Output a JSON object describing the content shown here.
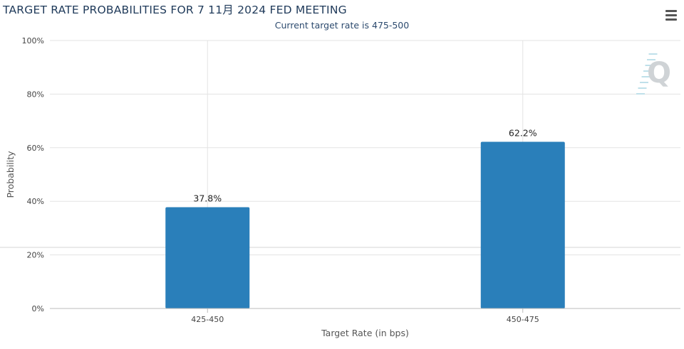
{
  "header": {
    "title": "TARGET RATE PROBABILITIES FOR 7 11月 2024 FED MEETING",
    "subtitle": "Current target rate is 475-500"
  },
  "menu": {
    "icon": "hamburger-menu-icon"
  },
  "watermark": {
    "icon": "q-logo-watermark",
    "text": "Q"
  },
  "colors": {
    "bar": "#2a7fba",
    "grid": "#e3e3e3",
    "title": "#1f3a5a"
  },
  "chart_data": {
    "type": "bar",
    "title": "TARGET RATE PROBABILITIES FOR 7 11月 2024 FED MEETING",
    "subtitle": "Current target rate is 475-500",
    "xlabel": "Target Rate (in bps)",
    "ylabel": "Probability",
    "categories": [
      "425-450",
      "450-475"
    ],
    "values": [
      37.8,
      62.2
    ],
    "data_labels": [
      "37.8%",
      "62.2%"
    ],
    "ylim": [
      0,
      100
    ],
    "yticks": [
      0,
      20,
      40,
      60,
      80,
      100
    ],
    "ytick_labels": [
      "0%",
      "20%",
      "40%",
      "60%",
      "80%",
      "100%"
    ],
    "grid": true,
    "legend": "none"
  }
}
